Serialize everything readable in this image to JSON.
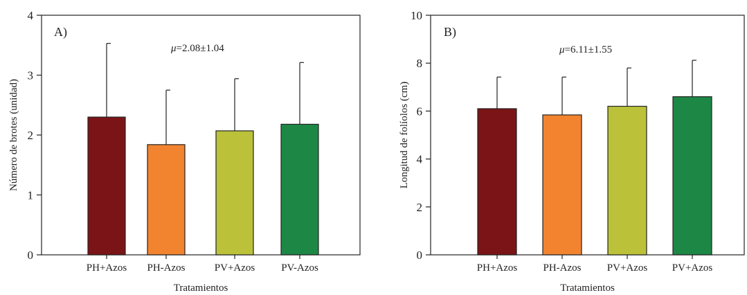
{
  "chart_data": [
    {
      "type": "bar",
      "panel_label": "A)",
      "annotation": {
        "symbol": "μ",
        "text": "=2.08±1.04"
      },
      "xlabel": "Tratamientos",
      "ylabel": "Número de brotes (unidad)",
      "ylim": [
        0,
        4
      ],
      "yticks": [
        0,
        1,
        2,
        3,
        4
      ],
      "categories": [
        "PH+Azos",
        "PH-Azos",
        "PV+Azos",
        "PV-Azos"
      ],
      "values": [
        2.3,
        1.84,
        2.07,
        2.18
      ],
      "errors": [
        1.23,
        0.91,
        0.87,
        1.03
      ],
      "colors": [
        "#7b1416",
        "#f28430",
        "#bbc23a",
        "#1d8845"
      ],
      "grid": false
    },
    {
      "type": "bar",
      "panel_label": "B)",
      "annotation": {
        "symbol": "μ",
        "text": "=6.11±1.55"
      },
      "xlabel": "Tratamientos",
      "ylabel": "Longitud de folíolos (cm)",
      "ylim": [
        0,
        10
      ],
      "yticks": [
        0,
        2,
        4,
        6,
        8,
        10
      ],
      "categories": [
        "PH+Azos",
        "PH-Azos",
        "PV+Azos",
        "PV+Azos"
      ],
      "values": [
        6.1,
        5.84,
        6.2,
        6.6
      ],
      "errors": [
        1.32,
        1.58,
        1.6,
        1.52
      ],
      "colors": [
        "#7b1416",
        "#f28430",
        "#bbc23a",
        "#1d8845"
      ],
      "grid": false
    }
  ]
}
